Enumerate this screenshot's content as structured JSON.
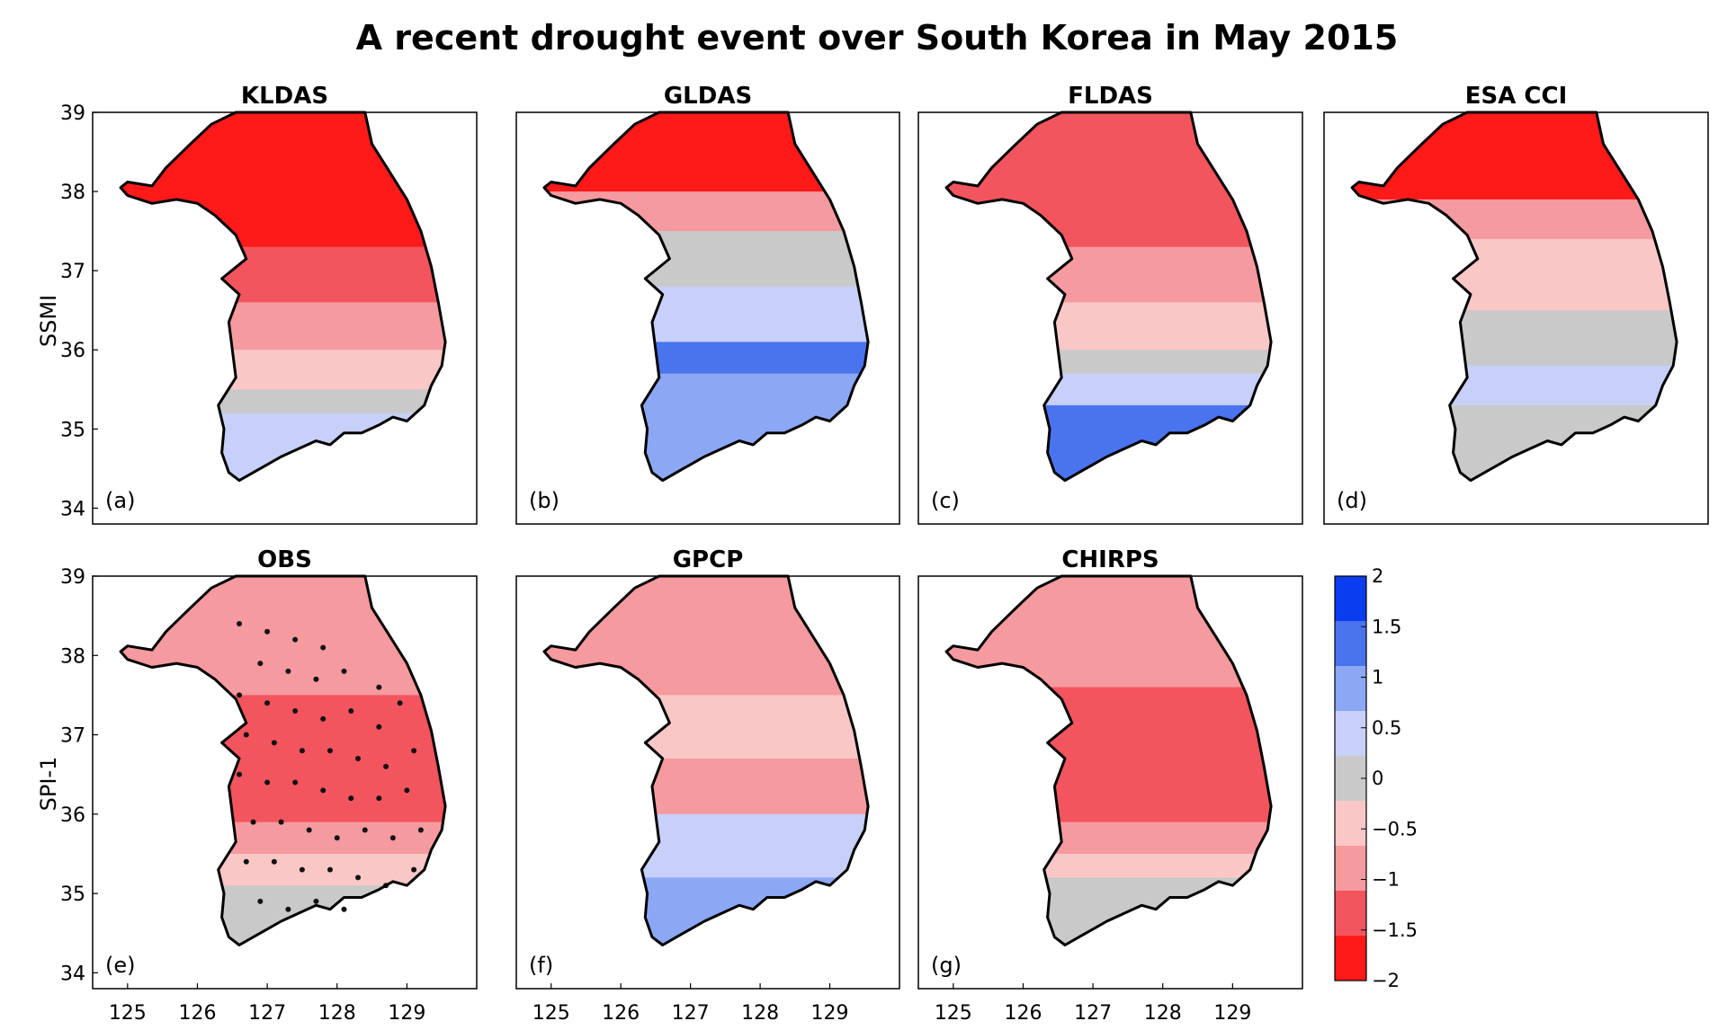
{
  "title": "A recent drought event over South Korea in May 2015",
  "row_labels": [
    "SSMI",
    "SPI-1"
  ],
  "x_ticks": [
    "125",
    "126",
    "127",
    "128",
    "129"
  ],
  "y_ticks": [
    "39",
    "38",
    "37",
    "36",
    "35",
    "34"
  ],
  "panels": [
    {
      "name": "KLDAS",
      "letter": "(a)"
    },
    {
      "name": "GLDAS",
      "letter": "(b)"
    },
    {
      "name": "FLDAS",
      "letter": "(c)"
    },
    {
      "name": "ESA CCI",
      "letter": "(d)"
    },
    {
      "name": "OBS",
      "letter": "(e)"
    },
    {
      "name": "GPCP",
      "letter": "(f)"
    },
    {
      "name": "CHIRPS",
      "letter": "(g)"
    }
  ],
  "colorbar": {
    "ticks": [
      "2",
      "1.5",
      "1",
      "0.5",
      "0",
      "−0.5",
      "−1",
      "−1.5",
      "−2"
    ],
    "colors": [
      "#0a3cf0",
      "#4a74ee",
      "#8ca8f4",
      "#c7d0f8",
      "#c9c9c9",
      "#fac7c7",
      "#f59a9e",
      "#f2555e",
      "#ff1a1a"
    ]
  },
  "chart_data": [
    {
      "type": "heatmap",
      "title": "KLDAS",
      "row": "SSMI",
      "label": "(a)",
      "xlim": [
        124.5,
        130
      ],
      "ylim": [
        33.8,
        39
      ],
      "variable": "SSMI",
      "zones": [
        {
          "lat_min": 37.3,
          "lat_max": 39.0,
          "value": -2.0
        },
        {
          "lat_min": 36.6,
          "lat_max": 37.3,
          "value": -1.5
        },
        {
          "lat_min": 36.0,
          "lat_max": 36.6,
          "value": -1.0
        },
        {
          "lat_min": 35.5,
          "lat_max": 36.0,
          "value": -0.5
        },
        {
          "lat_min": 35.2,
          "lat_max": 35.5,
          "value": 0.0
        },
        {
          "lat_min": 34.0,
          "lat_max": 35.2,
          "value": 0.5
        }
      ]
    },
    {
      "type": "heatmap",
      "title": "GLDAS",
      "row": "SSMI",
      "label": "(b)",
      "xlim": [
        124.5,
        130
      ],
      "ylim": [
        33.8,
        39
      ],
      "variable": "SSMI",
      "zones": [
        {
          "lat_min": 38.0,
          "lat_max": 39.0,
          "value": -2.0
        },
        {
          "lat_min": 37.5,
          "lat_max": 38.0,
          "value": -1.0
        },
        {
          "lat_min": 36.8,
          "lat_max": 37.5,
          "value": 0.0
        },
        {
          "lat_min": 36.1,
          "lat_max": 36.8,
          "value": 0.5
        },
        {
          "lat_min": 35.7,
          "lat_max": 36.1,
          "value": 1.5
        },
        {
          "lat_min": 34.0,
          "lat_max": 35.7,
          "value": 1.0
        }
      ]
    },
    {
      "type": "heatmap",
      "title": "FLDAS",
      "row": "SSMI",
      "label": "(c)",
      "xlim": [
        124.5,
        130
      ],
      "ylim": [
        33.8,
        39
      ],
      "variable": "SSMI",
      "zones": [
        {
          "lat_min": 37.3,
          "lat_max": 39.0,
          "value": -1.5
        },
        {
          "lat_min": 36.6,
          "lat_max": 37.3,
          "value": -1.0
        },
        {
          "lat_min": 36.0,
          "lat_max": 36.6,
          "value": -0.5
        },
        {
          "lat_min": 35.7,
          "lat_max": 36.0,
          "value": 0.0
        },
        {
          "lat_min": 35.3,
          "lat_max": 35.7,
          "value": 0.5
        },
        {
          "lat_min": 34.0,
          "lat_max": 35.3,
          "value": 1.5
        }
      ]
    },
    {
      "type": "heatmap",
      "title": "ESA CCI",
      "row": "SSMI",
      "label": "(d)",
      "xlim": [
        124.5,
        130
      ],
      "ylim": [
        33.8,
        39
      ],
      "variable": "SSMI",
      "zones": [
        {
          "lat_min": 37.9,
          "lat_max": 39.0,
          "value": -2.0
        },
        {
          "lat_min": 37.4,
          "lat_max": 37.9,
          "value": -1.0
        },
        {
          "lat_min": 36.5,
          "lat_max": 37.4,
          "value": -0.5
        },
        {
          "lat_min": 35.8,
          "lat_max": 36.5,
          "value": 0.0
        },
        {
          "lat_min": 35.3,
          "lat_max": 35.8,
          "value": 0.5
        },
        {
          "lat_min": 34.0,
          "lat_max": 35.3,
          "value": 0.0
        }
      ]
    },
    {
      "type": "heatmap",
      "title": "OBS",
      "row": "SPI-1",
      "label": "(e)",
      "xlim": [
        124.5,
        130
      ],
      "ylim": [
        33.8,
        39
      ],
      "variable": "SPI-1",
      "zones": [
        {
          "lat_min": 37.5,
          "lat_max": 39.0,
          "value": -1.0
        },
        {
          "lat_min": 35.9,
          "lat_max": 37.5,
          "value": -1.5
        },
        {
          "lat_min": 35.5,
          "lat_max": 35.9,
          "value": -1.0
        },
        {
          "lat_min": 35.1,
          "lat_max": 35.5,
          "value": -0.5
        },
        {
          "lat_min": 34.0,
          "lat_max": 35.1,
          "value": 0.0
        }
      ],
      "stations": [
        [
          126.6,
          38.4
        ],
        [
          127.0,
          38.3
        ],
        [
          127.4,
          38.2
        ],
        [
          127.8,
          38.1
        ],
        [
          126.9,
          37.9
        ],
        [
          127.3,
          37.8
        ],
        [
          127.7,
          37.7
        ],
        [
          128.1,
          37.8
        ],
        [
          128.6,
          37.6
        ],
        [
          128.9,
          37.4
        ],
        [
          126.6,
          37.5
        ],
        [
          127.0,
          37.4
        ],
        [
          127.4,
          37.3
        ],
        [
          127.8,
          37.2
        ],
        [
          128.2,
          37.3
        ],
        [
          128.6,
          37.1
        ],
        [
          126.7,
          37.0
        ],
        [
          127.1,
          36.9
        ],
        [
          127.5,
          36.8
        ],
        [
          127.9,
          36.8
        ],
        [
          128.3,
          36.7
        ],
        [
          128.7,
          36.6
        ],
        [
          129.1,
          36.8
        ],
        [
          126.6,
          36.5
        ],
        [
          127.0,
          36.4
        ],
        [
          127.4,
          36.4
        ],
        [
          127.8,
          36.3
        ],
        [
          128.2,
          36.2
        ],
        [
          128.6,
          36.2
        ],
        [
          129.0,
          36.3
        ],
        [
          126.8,
          35.9
        ],
        [
          127.2,
          35.9
        ],
        [
          127.6,
          35.8
        ],
        [
          128.0,
          35.7
        ],
        [
          128.4,
          35.8
        ],
        [
          128.8,
          35.7
        ],
        [
          129.2,
          35.8
        ],
        [
          126.7,
          35.4
        ],
        [
          127.1,
          35.4
        ],
        [
          127.5,
          35.3
        ],
        [
          127.9,
          35.3
        ],
        [
          128.3,
          35.2
        ],
        [
          128.7,
          35.1
        ],
        [
          129.1,
          35.3
        ],
        [
          126.9,
          34.9
        ],
        [
          127.3,
          34.8
        ],
        [
          127.7,
          34.9
        ],
        [
          128.1,
          34.8
        ]
      ]
    },
    {
      "type": "heatmap",
      "title": "GPCP",
      "row": "SPI-1",
      "label": "(f)",
      "xlim": [
        124.5,
        130
      ],
      "ylim": [
        33.8,
        39
      ],
      "variable": "SPI-1",
      "zones": [
        {
          "lat_min": 37.5,
          "lat_max": 39.0,
          "value": -1.0
        },
        {
          "lat_min": 36.7,
          "lat_max": 37.5,
          "value": -0.5
        },
        {
          "lat_min": 36.0,
          "lat_max": 36.7,
          "value": -1.0
        },
        {
          "lat_min": 35.6,
          "lat_max": 36.0,
          "value": 0.5
        },
        {
          "lat_min": 35.2,
          "lat_max": 35.6,
          "value": 0.5
        },
        {
          "lat_min": 34.0,
          "lat_max": 35.2,
          "value": 1.0
        }
      ]
    },
    {
      "type": "heatmap",
      "title": "CHIRPS",
      "row": "SPI-1",
      "label": "(g)",
      "xlim": [
        124.5,
        130
      ],
      "ylim": [
        33.8,
        39
      ],
      "variable": "SPI-1",
      "zones": [
        {
          "lat_min": 37.6,
          "lat_max": 39.0,
          "value": -1.0
        },
        {
          "lat_min": 35.9,
          "lat_max": 37.6,
          "value": -1.5
        },
        {
          "lat_min": 35.5,
          "lat_max": 35.9,
          "value": -1.0
        },
        {
          "lat_min": 35.2,
          "lat_max": 35.5,
          "value": -0.5
        },
        {
          "lat_min": 34.0,
          "lat_max": 35.2,
          "value": 0.0
        }
      ]
    }
  ]
}
